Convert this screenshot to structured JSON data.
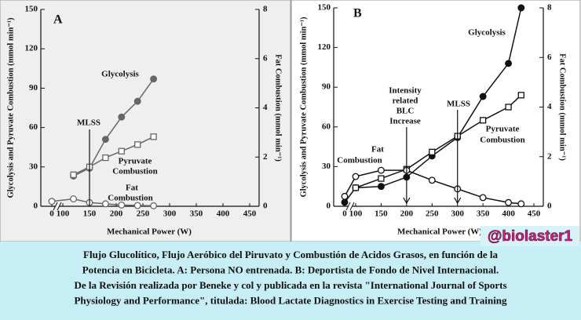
{
  "chart_data": [
    {
      "type": "line",
      "panel_label": "A",
      "xlabel": "Mechanical Power (W)",
      "ylabel": "Glycolysis and Pyruvate Combustion (mmol min⁻¹)",
      "y2label": "Fat Combustion (mmol min⁻¹)",
      "x": [
        0,
        120,
        150,
        180,
        210,
        240,
        270
      ],
      "series": [
        {
          "name": "Glycolysis",
          "color": "#666666",
          "marker": "circle-filled",
          "values": [
            null,
            23,
            29,
            51,
            68,
            80,
            97
          ]
        },
        {
          "name": "Pyruvate Combustion",
          "color": "#666666",
          "marker": "square-open",
          "values": [
            null,
            24,
            30,
            37,
            42,
            47,
            53
          ]
        },
        {
          "name": "Fat Combustion",
          "color": "#666666",
          "marker": "circle-open",
          "axis": "y2",
          "values": [
            0.2,
            0.3,
            0.15,
            0.1,
            0.05,
            0.03,
            0.02
          ]
        }
      ],
      "xlim": [
        0,
        450
      ],
      "xbreak": [
        0,
        100
      ],
      "xticks": [
        0,
        100,
        150,
        200,
        250,
        300,
        350,
        400,
        450
      ],
      "ylim": [
        0,
        150
      ],
      "yticks": [
        0,
        30,
        60,
        90,
        120,
        150
      ],
      "y2lim": [
        0,
        8
      ],
      "y2ticks": [
        0,
        2,
        4,
        6,
        8
      ],
      "annotations": [
        {
          "text": [
            "A"
          ]
        },
        {
          "text": [
            "Glycolysis"
          ]
        },
        {
          "text": [
            "MLSS"
          ],
          "x": 150
        },
        {
          "text": [
            "Pyruvate",
            "Combustion"
          ]
        },
        {
          "text": [
            "Fat",
            "Combustion"
          ]
        }
      ]
    },
    {
      "type": "line",
      "panel_label": "B",
      "xlabel": "Mechanical Power (W)",
      "ylabel": "Glycolysis and Pyruvate Combustion (mmol min⁻¹)",
      "y2label": "Fat Combustion (mmol min⁻¹)",
      "x": [
        0,
        100,
        150,
        200,
        250,
        300,
        350,
        400,
        425
      ],
      "series": [
        {
          "name": "Glycolysis",
          "color": "#111111",
          "marker": "circle-filled",
          "values": [
            3,
            14,
            15,
            22,
            38,
            52,
            83,
            108,
            150
          ]
        },
        {
          "name": "Pyruvate Combustion",
          "color": "#111111",
          "marker": "square-open",
          "values": [
            null,
            14,
            21,
            28,
            41,
            53,
            65,
            75,
            84
          ]
        },
        {
          "name": "Fat Combustion",
          "color": "#111111",
          "marker": "circle-open",
          "axis": "y2",
          "values": [
            0.4,
            1.2,
            1.45,
            1.45,
            1.05,
            0.7,
            0.35,
            0.15,
            0.1
          ]
        }
      ],
      "xlim": [
        0,
        450
      ],
      "xbreak": [
        0,
        100
      ],
      "xticks": [
        0,
        100,
        150,
        200,
        250,
        300,
        350,
        400,
        450
      ],
      "ylim": [
        0,
        150
      ],
      "yticks": [
        0,
        30,
        60,
        90,
        120,
        150
      ],
      "y2lim": [
        0,
        8
      ],
      "y2ticks": [
        0,
        2,
        4,
        6,
        8
      ],
      "annotations": [
        {
          "text": [
            "B"
          ]
        },
        {
          "text": [
            "Glycolysis"
          ]
        },
        {
          "text": [
            "Intensity",
            "related",
            "BLC",
            "Increase"
          ],
          "x": 200
        },
        {
          "text": [
            "MLSS"
          ],
          "x": 300
        },
        {
          "text": [
            "Fat",
            "Combustion"
          ]
        },
        {
          "text": [
            "Pyruvate",
            "Combustion"
          ]
        }
      ]
    }
  ],
  "caption": {
    "lines": [
      "Flujo Glucolítico, Flujo Aeróbico del Piruvato y Combustión de Acidos Grasos, en función de la",
      "Potencia en Bicicleta. A: Persona NO entrenada. B: Deportista de Fondo de Nivel Internacional.",
      "De la Revisión realizada por Beneke y col y publicada en la revista \"International Journal of Sports",
      "Physiology and Performance\", titulada: Blood Lactate Diagnostics in Exercise Testing and Training"
    ]
  },
  "watermark": "@biolaster1"
}
